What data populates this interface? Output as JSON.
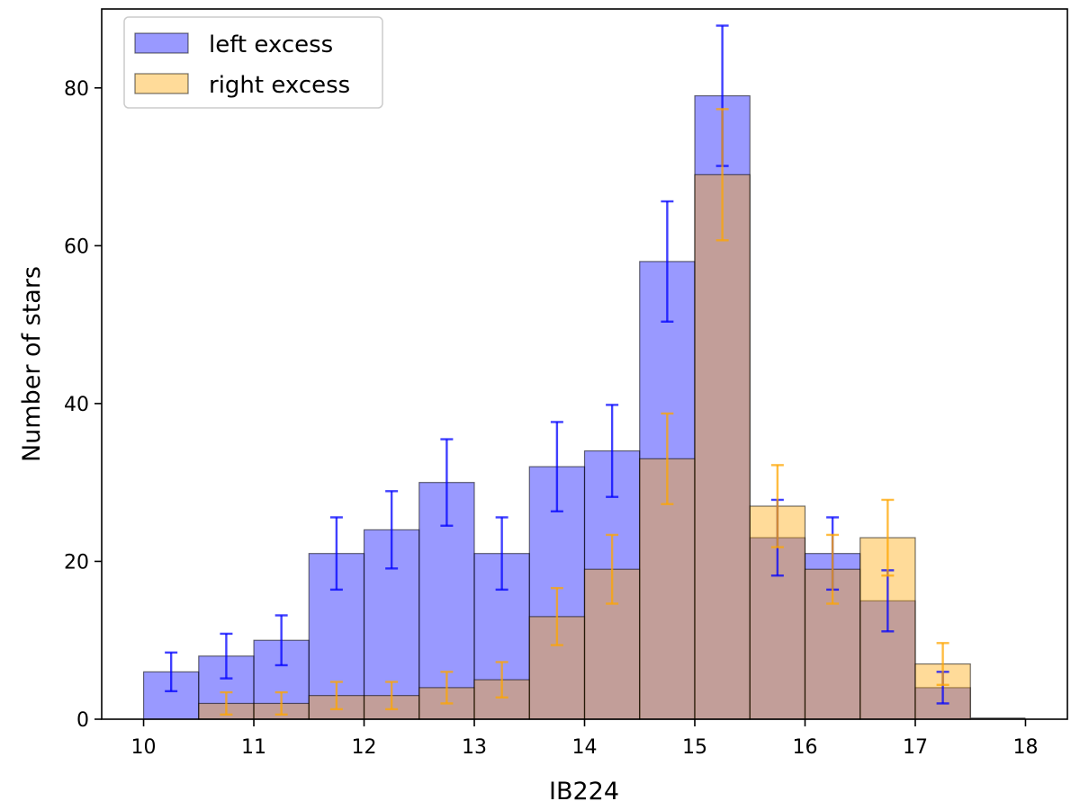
{
  "chart_data": {
    "type": "bar",
    "bin_edges": [
      10,
      10.5,
      11,
      11.5,
      12,
      12.5,
      13,
      13.5,
      14,
      14.5,
      15,
      15.5,
      16,
      16.5,
      17,
      17.5,
      18
    ],
    "xlabel": "IB224",
    "ylabel": "Number of stars",
    "xlim": [
      9.62,
      18.38
    ],
    "ylim": [
      0,
      90
    ],
    "xticks": [
      "10",
      "11",
      "12",
      "13",
      "14",
      "15",
      "16",
      "17",
      "18"
    ],
    "yticks": [
      "0",
      "20",
      "40",
      "60",
      "80"
    ],
    "legend_position": "top-left",
    "series": [
      {
        "name": "left excess",
        "color": "#0000ff",
        "fill_opacity": 0.4,
        "errorbar_color": "#0000ff",
        "values": [
          6,
          8,
          10,
          21,
          24,
          30,
          21,
          32,
          34,
          58,
          79,
          23,
          21,
          15,
          4,
          0
        ],
        "errors": [
          2.45,
          2.83,
          3.16,
          4.58,
          4.9,
          5.48,
          4.58,
          5.66,
          5.83,
          7.62,
          8.89,
          4.8,
          4.58,
          3.87,
          2.0,
          0
        ]
      },
      {
        "name": "right excess",
        "color": "#ffa500",
        "fill_opacity": 0.4,
        "errorbar_color": "#ffa500",
        "values": [
          0,
          2,
          2,
          3,
          3,
          4,
          5,
          13,
          19,
          33,
          69,
          27,
          19,
          23,
          7,
          0
        ],
        "errors": [
          0,
          1.41,
          1.41,
          1.73,
          1.73,
          2.0,
          2.24,
          3.61,
          4.36,
          5.74,
          8.31,
          5.2,
          4.36,
          4.8,
          2.65,
          0
        ]
      }
    ]
  }
}
